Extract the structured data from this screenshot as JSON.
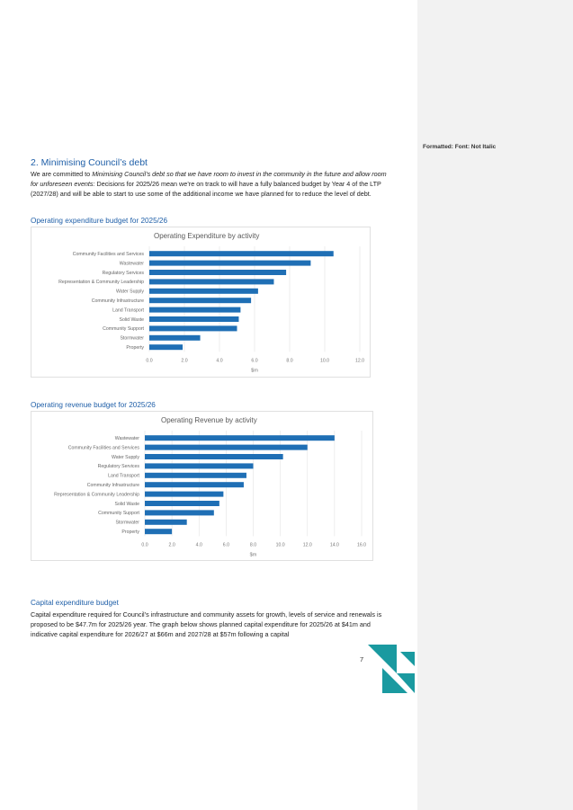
{
  "sidebar": {
    "comment_label": "Formatted: Font: Not Italic"
  },
  "section": {
    "heading": "2. Minimising Council’s debt",
    "para1_prefix": "We are committed to ",
    "para1_italic": "Minimising Council’s debt so that we have room to invest in the community in the future and allow room for unforeseen events:",
    "para1_rest": " Decisions for 2025/26 mean we’re on track to will have a fully balanced budget by Year 4 of the LTP (2027/28) and will be able to start to use some of the additional income we have planned for to reduce the level of debt."
  },
  "opex": {
    "subheading": "Operating expenditure budget for 2025/26"
  },
  "revenue": {
    "subheading": "Operating revenue budget for 2025/26"
  },
  "capex": {
    "subheading": "Capital expenditure budget",
    "para": "Capital expenditure required for Council’s infrastructure and community assets for growth, levels of service and renewals is proposed to be $47.7m for 2025/26 year. The graph below shows planned capital expenditure for 2025/26 at $41m and indicative capital expenditure for 2026/27 at $66m and 2027/28 at $57m following a capital"
  },
  "page_number": "7",
  "colors": {
    "bar": "#1f6fb5",
    "heading": "#1f5fa8",
    "logo": "#1a9aa0"
  },
  "chart_data": [
    {
      "type": "bar",
      "orientation": "horizontal",
      "title": "Operating Expenditure by activity",
      "xlabel": "$m",
      "xlim": [
        0,
        12
      ],
      "ticks": [
        "0.0",
        "2.0",
        "4.0",
        "6.0",
        "8.0",
        "10.0",
        "12.0"
      ],
      "tick_values": [
        0,
        2,
        4,
        6,
        8,
        10,
        12
      ],
      "categories": [
        "Community Facilities and Services",
        "Wastewater",
        "Regulatory Services",
        "Representation & Community Leadership",
        "Water Supply",
        "Community Infrastructure",
        "Land Transport",
        "Solid Waste",
        "Community Support",
        "Stormwater",
        "Property"
      ],
      "values": [
        10.5,
        9.2,
        7.8,
        7.1,
        6.2,
        5.8,
        5.2,
        5.1,
        5.0,
        2.9,
        1.9
      ],
      "grid": true
    },
    {
      "type": "bar",
      "orientation": "horizontal",
      "title": "Operating Revenue by activity",
      "xlabel": "$m",
      "xlim": [
        0,
        16
      ],
      "ticks": [
        "0.0",
        "2.0",
        "4.0",
        "6.0",
        "8.0",
        "10.0",
        "12.0",
        "14.0",
        "16.0"
      ],
      "tick_values": [
        0,
        2,
        4,
        6,
        8,
        10,
        12,
        14,
        16
      ],
      "categories": [
        "Wastewater",
        "Community Facilities and Services",
        "Water Supply",
        "Regulatory Services",
        "Land Transport",
        "Community Infrastructure",
        "Representation & Community Leadership",
        "Solid Waste",
        "Community Support",
        "Stormwater",
        "Property"
      ],
      "values": [
        14.0,
        12.0,
        10.2,
        8.0,
        7.5,
        7.3,
        5.8,
        5.5,
        5.1,
        3.1,
        2.0
      ],
      "grid": true
    }
  ]
}
